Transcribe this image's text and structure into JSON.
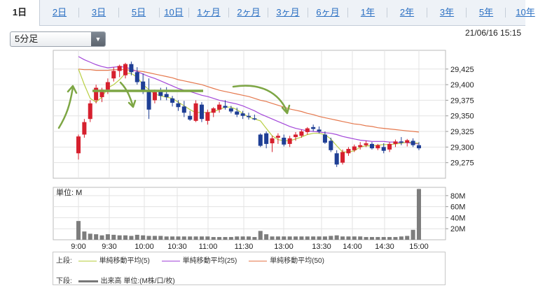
{
  "tabs": [
    {
      "label": "1日",
      "active": true
    },
    {
      "label": "2日"
    },
    {
      "label": "3日"
    },
    {
      "label": "5日"
    },
    {
      "label": "10日"
    },
    {
      "label": "1ヶ月"
    },
    {
      "label": "2ヶ月"
    },
    {
      "label": "3ヶ月"
    },
    {
      "label": "6ヶ月"
    },
    {
      "label": "1年"
    },
    {
      "label": "2年"
    },
    {
      "label": "3年"
    },
    {
      "label": "5年"
    },
    {
      "label": "10年"
    }
  ],
  "period_select": {
    "value": "5分足"
  },
  "timestamp": "21/06/16 15:15",
  "volume_panel": {
    "unit_label": "単位: M"
  },
  "legend": {
    "upper_label": "上段:",
    "lower_label": "下段:",
    "ma5": "単純移動平均(5)",
    "ma25": "単純移動平均(25)",
    "ma50": "単純移動平均(50)",
    "volume": "出来高 単位:(M株/口/枚)"
  },
  "colors": {
    "up": "#d6202e",
    "down": "#1f3f95",
    "ma5": "#b9cf43",
    "ma25": "#a347d9",
    "ma50": "#e5784d",
    "annotation": "#7da644",
    "volume": "#7d7d7d"
  },
  "annotation_icons": [
    "arrow-up-icon",
    "arrow-down-icon",
    "arrow-down-icon",
    "resistance-line"
  ],
  "chart_data": {
    "type": "candlestick",
    "price_axis": {
      "ticks": [
        "29,425",
        "29,400",
        "29,375",
        "29,350",
        "29,325",
        "29,300",
        "29,275"
      ],
      "tick_values": [
        29425,
        29400,
        29375,
        29350,
        29325,
        29300,
        29275
      ],
      "range": [
        29250,
        29455
      ]
    },
    "volume_axis": {
      "ticks": [
        "80M",
        "60M",
        "40M",
        "20M"
      ],
      "tick_values": [
        80,
        60,
        40,
        20
      ],
      "range": [
        0,
        95
      ]
    },
    "x_ticks": [
      "9:00",
      "9:30",
      "10:00",
      "10:30",
      "11:00",
      "11:30",
      "13:00",
      "13:30",
      "14:00",
      "14:30",
      "15:00"
    ],
    "candles": [
      [
        29290,
        29320,
        29280,
        29317
      ],
      [
        29320,
        29345,
        29315,
        29340
      ],
      [
        29345,
        29375,
        29340,
        29370
      ],
      [
        29375,
        29400,
        29370,
        29395
      ],
      [
        29380,
        29395,
        29372,
        29392
      ],
      [
        29392,
        29410,
        29385,
        29404
      ],
      [
        29410,
        29428,
        29405,
        29422
      ],
      [
        29422,
        29432,
        29412,
        29430
      ],
      [
        29415,
        29435,
        29410,
        29433
      ],
      [
        29433,
        29437,
        29415,
        29420
      ],
      [
        29420,
        29428,
        29400,
        29404
      ],
      [
        29405,
        29418,
        29385,
        29389
      ],
      [
        29390,
        29410,
        29345,
        29360
      ],
      [
        29375,
        29392,
        29370,
        29388
      ],
      [
        29390,
        29395,
        29375,
        29382
      ],
      [
        29385,
        29396,
        29375,
        29380
      ],
      [
        29378,
        29382,
        29365,
        29371
      ],
      [
        29370,
        29375,
        29358,
        29364
      ],
      [
        29365,
        29374,
        29348,
        29355
      ],
      [
        29350,
        29358,
        29342,
        29344
      ],
      [
        29342,
        29375,
        29340,
        29370
      ],
      [
        29368,
        29372,
        29340,
        29345
      ],
      [
        29342,
        29360,
        29336,
        29356
      ],
      [
        29355,
        29364,
        29348,
        29362
      ],
      [
        29360,
        29372,
        29355,
        29368
      ],
      [
        29366,
        29375,
        29360,
        29363
      ],
      [
        29362,
        29366,
        29354,
        29357
      ],
      [
        29357,
        29363,
        29348,
        29352
      ],
      [
        29354,
        29358,
        29345,
        29350
      ],
      [
        29350,
        29355,
        29344,
        29348
      ],
      [
        29346,
        29352,
        29343,
        29345
      ],
      [
        29320,
        29322,
        29300,
        29302
      ],
      [
        29322,
        29325,
        29298,
        29305
      ],
      [
        29306,
        29318,
        29292,
        29314
      ],
      [
        29315,
        29322,
        29305,
        29318
      ],
      [
        29315,
        29320,
        29301,
        29304
      ],
      [
        29305,
        29318,
        29300,
        29314
      ],
      [
        29316,
        29324,
        29310,
        29320
      ],
      [
        29318,
        29328,
        29315,
        29325
      ],
      [
        29324,
        29332,
        29320,
        29330
      ],
      [
        29332,
        29336,
        29325,
        29329
      ],
      [
        29328,
        29333,
        29322,
        29325
      ],
      [
        29320,
        29325,
        29305,
        29307
      ],
      [
        29310,
        29315,
        29292,
        29295
      ],
      [
        29290,
        29295,
        29268,
        29272
      ],
      [
        29275,
        29296,
        29272,
        29292
      ],
      [
        29290,
        29300,
        29286,
        29297
      ],
      [
        29295,
        29304,
        29292,
        29301
      ],
      [
        29300,
        29308,
        29296,
        29303
      ],
      [
        29303,
        29310,
        29300,
        29306
      ],
      [
        29305,
        29308,
        29296,
        29298
      ],
      [
        29298,
        29305,
        29295,
        29303
      ],
      [
        29300,
        29306,
        29290,
        29294
      ],
      [
        29296,
        29308,
        29292,
        29305
      ],
      [
        29305,
        29312,
        29300,
        29309
      ],
      [
        29309,
        29316,
        29303,
        29307
      ],
      [
        29307,
        29313,
        29301,
        29311
      ],
      [
        29310,
        29314,
        29300,
        29303
      ],
      [
        29303,
        29308,
        29295,
        29298
      ]
    ],
    "volumes": [
      34,
      15,
      11,
      10,
      8,
      10,
      9,
      8,
      8,
      7,
      9,
      8,
      7,
      7,
      7,
      6,
      6,
      6,
      6,
      6,
      6,
      6,
      6,
      5,
      5,
      5,
      5,
      6,
      6,
      6,
      5,
      16,
      10,
      6,
      6,
      6,
      6,
      6,
      6,
      6,
      6,
      6,
      6,
      7,
      8,
      6,
      6,
      6,
      6,
      5,
      5,
      5,
      5,
      5,
      5,
      6,
      7,
      18,
      92
    ],
    "ma5": [
      29425,
      29400,
      29378,
      29372,
      29380,
      29395,
      29400,
      29408,
      29418,
      29418,
      29412,
      29400,
      29392,
      29385,
      29382,
      29380,
      29378,
      29372,
      29366,
      29360,
      29355,
      29356,
      29355,
      29357,
      29360,
      29364,
      29364,
      29360,
      29354,
      29348,
      29345,
      29342,
      29330,
      29318,
      29312,
      29310,
      29310,
      29313,
      29316,
      29320,
      29322,
      29322,
      29320,
      29313,
      29302,
      29292,
      29292,
      29294,
      29300,
      29302,
      29302,
      29303,
      29304,
      29304,
      29305,
      29306,
      29308,
      29307,
      29306
    ],
    "ma25": [
      29445,
      29440,
      29436,
      29432,
      29429,
      29427,
      29428,
      29429,
      29428,
      29425,
      29421,
      29417,
      29413,
      29410,
      29406,
      29402,
      29398,
      29394,
      29391,
      29389,
      29386,
      29383,
      29381,
      29378,
      29375,
      29373,
      29371,
      29369,
      29366,
      29362,
      29358,
      29353,
      29349,
      29345,
      29341,
      29337,
      29333,
      29330,
      29328,
      29326,
      29325,
      29324,
      29323,
      29322,
      29320,
      29317,
      29315,
      29313,
      29311,
      29310,
      29309,
      29309,
      29309,
      29308,
      29308,
      29307,
      29307,
      29306,
      29305
    ],
    "ma50": [
      29425,
      29424,
      29424,
      29423,
      29423,
      29423,
      29424,
      29424,
      29424,
      29423,
      29422,
      29421,
      29419,
      29417,
      29415,
      29413,
      29411,
      29408,
      29406,
      29404,
      29402,
      29400,
      29397,
      29394,
      29391,
      29389,
      29387,
      29385,
      29383,
      29381,
      29378,
      29375,
      29373,
      29370,
      29367,
      29364,
      29361,
      29359,
      29357,
      29354,
      29352,
      29349,
      29347,
      29345,
      29343,
      29341,
      29339,
      29337,
      29336,
      29334,
      29333,
      29331,
      29330,
      29329,
      29328,
      29327,
      29326,
      29325,
      29324
    ]
  }
}
